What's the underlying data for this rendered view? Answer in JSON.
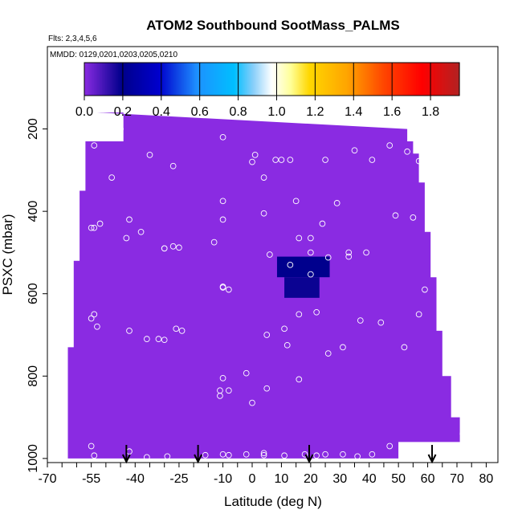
{
  "chart_data": {
    "type": "heatmap",
    "title": "ATOM2 Southbound SootMass_PALMS",
    "flights_label": "Flts: 2,3,4,5,6",
    "dates_label": "MMDD: 0129,0201,0203,0205,0210",
    "xlabel": "Latitude (deg N)",
    "ylabel": "PSXC (mbar)",
    "x_range": [
      -70,
      84
    ],
    "y_range": [
      1010,
      0
    ],
    "x_ticks": [
      -70,
      -55,
      -40,
      -25,
      -10,
      0,
      10,
      20,
      30,
      40,
      50,
      60,
      70,
      80
    ],
    "x_minor_ticks": [
      -65,
      -60,
      -50,
      -45,
      -35,
      -30,
      -20,
      -15,
      -5,
      5,
      15,
      25,
      35,
      45,
      55,
      65,
      75
    ],
    "y_ticks": [
      200,
      400,
      600,
      800,
      1000
    ],
    "grid": false,
    "colorbar": {
      "position": "top",
      "min": 0.0,
      "max": 1.95,
      "ticks": [
        0.0,
        0.2,
        0.4,
        0.6,
        0.8,
        1.0,
        1.2,
        1.4,
        1.6,
        1.8
      ],
      "tick_labels": [
        "0.0",
        "0.2",
        "0.4",
        "0.6",
        "0.8",
        "1.0",
        "1.2",
        "1.4",
        "1.6",
        "1.8"
      ],
      "colors": [
        "#8a2be2",
        "#00008b",
        "#0000cd",
        "#1e90ff",
        "#00bfff",
        "#87cefa",
        "#ffffff",
        "#ffff99",
        "#ffd700",
        "#ffa500",
        "#ff4500",
        "#ff0000",
        "#b22222"
      ],
      "stops": [
        0.0,
        0.1,
        0.2,
        0.3,
        0.4,
        0.45,
        0.5,
        0.55,
        0.6,
        0.7,
        0.8,
        0.9,
        1.0
      ]
    },
    "background_value": 0.05,
    "background_color": "#8a2be2",
    "field_outline": [
      [
        -53,
        160
      ],
      [
        -44,
        160
      ],
      [
        -44,
        230
      ],
      [
        -57,
        230
      ],
      [
        -57,
        350
      ],
      [
        -59,
        350
      ],
      [
        -59,
        520
      ],
      [
        -61,
        520
      ],
      [
        -61,
        730
      ],
      [
        -63,
        730
      ],
      [
        -63,
        1000
      ],
      [
        50,
        1000
      ],
      [
        50,
        960
      ],
      [
        71,
        960
      ],
      [
        71,
        900
      ],
      [
        68,
        900
      ],
      [
        68,
        800
      ],
      [
        65,
        800
      ],
      [
        65,
        690
      ],
      [
        63,
        690
      ],
      [
        63,
        560
      ],
      [
        61,
        560
      ],
      [
        61,
        450
      ],
      [
        59,
        450
      ],
      [
        59,
        330
      ],
      [
        57,
        330
      ],
      [
        57,
        260
      ],
      [
        55,
        260
      ],
      [
        55,
        230
      ],
      [
        53,
        230
      ],
      [
        53,
        200
      ]
    ],
    "anomalies": [
      {
        "lat_min": 8.5,
        "lat_max": 26.5,
        "p_min": 510,
        "p_max": 560,
        "value": 0.2
      },
      {
        "lat_min": 11,
        "lat_max": 23,
        "p_min": 560,
        "p_max": 610,
        "value": 0.18
      }
    ],
    "observations": [
      [
        -53,
        200
      ],
      [
        -50,
        200
      ],
      [
        -45,
        200
      ],
      [
        -54,
        240
      ],
      [
        -35,
        263
      ],
      [
        -27,
        290
      ],
      [
        -48,
        318
      ],
      [
        -10,
        220
      ],
      [
        1,
        263
      ],
      [
        0,
        280
      ],
      [
        8,
        275
      ],
      [
        10,
        275
      ],
      [
        13,
        275
      ],
      [
        4,
        318
      ],
      [
        25,
        275
      ],
      [
        35,
        252
      ],
      [
        41,
        275
      ],
      [
        47,
        240
      ],
      [
        53,
        255
      ],
      [
        57,
        278
      ],
      [
        -10,
        375
      ],
      [
        -10,
        420
      ],
      [
        15,
        375
      ],
      [
        29,
        380
      ],
      [
        -42,
        420
      ],
      [
        -55,
        440
      ],
      [
        -54,
        440
      ],
      [
        -52,
        430
      ],
      [
        -43,
        465
      ],
      [
        -38,
        450
      ],
      [
        -30,
        490
      ],
      [
        -30,
        490
      ],
      [
        -27,
        485
      ],
      [
        -25,
        488
      ],
      [
        -13,
        475
      ],
      [
        4,
        405
      ],
      [
        16,
        465
      ],
      [
        20,
        465
      ],
      [
        24,
        430
      ],
      [
        49,
        410
      ],
      [
        55,
        415
      ],
      [
        6,
        505
      ],
      [
        13,
        530
      ],
      [
        20,
        500
      ],
      [
        20,
        553
      ],
      [
        26,
        512
      ],
      [
        33,
        500
      ],
      [
        33,
        510
      ],
      [
        39,
        500
      ],
      [
        -10,
        585
      ],
      [
        -8,
        590
      ],
      [
        -10,
        583
      ],
      [
        59,
        590
      ],
      [
        -69,
        640
      ],
      [
        -55,
        660
      ],
      [
        -54,
        650
      ],
      [
        -53,
        680
      ],
      [
        -42,
        690
      ],
      [
        -36,
        710
      ],
      [
        -32,
        710
      ],
      [
        -30,
        712
      ],
      [
        -26,
        685
      ],
      [
        -24,
        690
      ],
      [
        5,
        700
      ],
      [
        11,
        685
      ],
      [
        12,
        725
      ],
      [
        16,
        650
      ],
      [
        22,
        645
      ],
      [
        26,
        745
      ],
      [
        31,
        730
      ],
      [
        37,
        665
      ],
      [
        44,
        670
      ],
      [
        52,
        730
      ],
      [
        57,
        650
      ],
      [
        -10,
        805
      ],
      [
        -11,
        835
      ],
      [
        -8,
        835
      ],
      [
        -11,
        848
      ],
      [
        -2,
        793
      ],
      [
        0,
        865
      ],
      [
        5,
        830
      ],
      [
        16,
        808
      ],
      [
        -55,
        970
      ],
      [
        -54,
        993
      ],
      [
        -42,
        983
      ],
      [
        -36,
        997
      ],
      [
        -29,
        995
      ],
      [
        -16,
        992
      ],
      [
        -10,
        990
      ],
      [
        -8,
        992
      ],
      [
        -2,
        990
      ],
      [
        4,
        987
      ],
      [
        4,
        992
      ],
      [
        11,
        993
      ],
      [
        18,
        990
      ],
      [
        22,
        993
      ],
      [
        25,
        990
      ],
      [
        31,
        990
      ],
      [
        36,
        995
      ],
      [
        41,
        990
      ],
      [
        47,
        970
      ],
      [
        72,
        940
      ]
    ],
    "profile_markers": [
      -43,
      -18.5,
      19.5,
      61.5
    ]
  }
}
